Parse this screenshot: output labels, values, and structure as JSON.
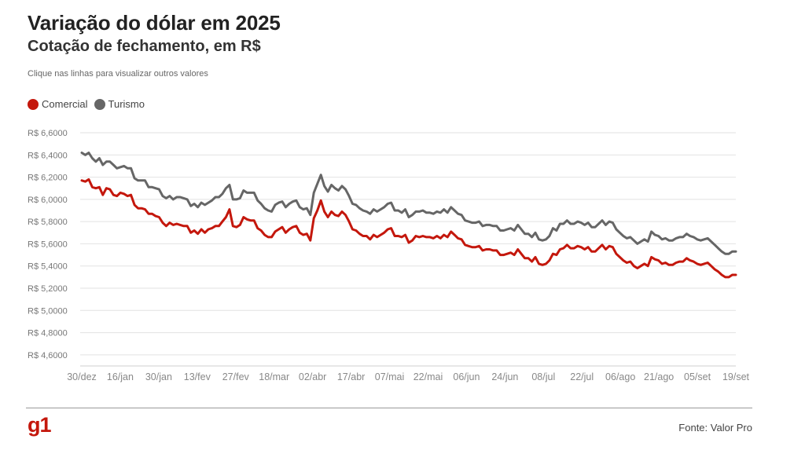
{
  "header": {
    "title": "Variação do dólar em 2025",
    "subtitle": "Cotação de fechamento, em R$",
    "instruction": "Clique nas linhas para visualizar outros valores"
  },
  "footer": {
    "logo": "g1",
    "source": "Fonte: Valor Pro"
  },
  "colors": {
    "comercial": "#c4170c",
    "turismo": "#666666",
    "grid": "#e2e2e2"
  },
  "chart_data": {
    "type": "line",
    "title": "Variação do dólar em 2025",
    "subtitle": "Cotação de fechamento, em R$",
    "ylim": [
      4.5,
      6.6
    ],
    "yticks": [
      6.6,
      6.4,
      6.2,
      6.0,
      5.8,
      5.6,
      5.4,
      5.2,
      5.0,
      4.8,
      4.6
    ],
    "ytick_labels": [
      "R$ 6,6000",
      "R$ 6,4000",
      "R$ 6,2000",
      "R$ 6,0000",
      "R$ 5,8000",
      "R$ 5,6000",
      "R$ 5,4000",
      "R$ 5,2000",
      "R$ 5,0000",
      "R$ 4,8000",
      "R$ 4,6000"
    ],
    "xtick_labels": [
      "30/dez",
      "16/jan",
      "30/jan",
      "13/fev",
      "27/fev",
      "18/mar",
      "02/abr",
      "17/abr",
      "07/mai",
      "22/mai",
      "06/jun",
      "24/jun",
      "08/jul",
      "22/jul",
      "06/ago",
      "21/ago",
      "05/set",
      "19/set"
    ],
    "legend_position": "top-left",
    "grid": true,
    "series": [
      {
        "name": "Comercial",
        "color": "#c4170c",
        "values": [
          6.17,
          6.16,
          6.18,
          6.11,
          6.1,
          6.11,
          6.04,
          6.1,
          6.09,
          6.04,
          6.03,
          6.06,
          6.05,
          6.03,
          6.04,
          5.95,
          5.92,
          5.92,
          5.91,
          5.87,
          5.87,
          5.85,
          5.84,
          5.79,
          5.76,
          5.79,
          5.77,
          5.78,
          5.77,
          5.76,
          5.76,
          5.7,
          5.72,
          5.69,
          5.73,
          5.7,
          5.73,
          5.74,
          5.76,
          5.76,
          5.8,
          5.84,
          5.91,
          5.76,
          5.75,
          5.77,
          5.84,
          5.82,
          5.81,
          5.81,
          5.74,
          5.72,
          5.68,
          5.66,
          5.66,
          5.71,
          5.73,
          5.75,
          5.7,
          5.73,
          5.75,
          5.76,
          5.7,
          5.68,
          5.69,
          5.63,
          5.83,
          5.9,
          5.99,
          5.89,
          5.84,
          5.89,
          5.86,
          5.85,
          5.89,
          5.86,
          5.8,
          5.73,
          5.72,
          5.69,
          5.67,
          5.67,
          5.64,
          5.68,
          5.66,
          5.68,
          5.7,
          5.73,
          5.74,
          5.67,
          5.67,
          5.66,
          5.68,
          5.61,
          5.63,
          5.67,
          5.66,
          5.67,
          5.66,
          5.66,
          5.65,
          5.67,
          5.65,
          5.68,
          5.66,
          5.71,
          5.68,
          5.65,
          5.64,
          5.59,
          5.58,
          5.57,
          5.57,
          5.58,
          5.54,
          5.55,
          5.55,
          5.54,
          5.54,
          5.5,
          5.5,
          5.51,
          5.52,
          5.5,
          5.55,
          5.51,
          5.47,
          5.47,
          5.44,
          5.48,
          5.42,
          5.41,
          5.42,
          5.45,
          5.51,
          5.5,
          5.55,
          5.56,
          5.59,
          5.56,
          5.56,
          5.58,
          5.57,
          5.55,
          5.57,
          5.53,
          5.53,
          5.56,
          5.59,
          5.55,
          5.58,
          5.57,
          5.51,
          5.48,
          5.45,
          5.43,
          5.44,
          5.4,
          5.38,
          5.4,
          5.42,
          5.4,
          5.48,
          5.46,
          5.45,
          5.42,
          5.43,
          5.41,
          5.41,
          5.43,
          5.44,
          5.44,
          5.47,
          5.45,
          5.44,
          5.42,
          5.41,
          5.42,
          5.43,
          5.4,
          5.37,
          5.35,
          5.32,
          5.3,
          5.3,
          5.32,
          5.32
        ]
      },
      {
        "name": "Turismo",
        "color": "#666666",
        "values": [
          6.42,
          6.4,
          6.42,
          6.37,
          6.34,
          6.37,
          6.31,
          6.34,
          6.34,
          6.31,
          6.28,
          6.29,
          6.3,
          6.28,
          6.28,
          6.19,
          6.17,
          6.17,
          6.17,
          6.11,
          6.11,
          6.1,
          6.09,
          6.03,
          6.01,
          6.03,
          6.0,
          6.02,
          6.02,
          6.01,
          6.0,
          5.94,
          5.96,
          5.93,
          5.97,
          5.95,
          5.97,
          5.99,
          6.02,
          6.02,
          6.05,
          6.1,
          6.13,
          6.0,
          6.0,
          6.01,
          6.08,
          6.06,
          6.06,
          6.06,
          5.99,
          5.96,
          5.92,
          5.9,
          5.89,
          5.95,
          5.97,
          5.98,
          5.93,
          5.96,
          5.98,
          5.99,
          5.93,
          5.91,
          5.92,
          5.86,
          6.06,
          6.14,
          6.22,
          6.12,
          6.07,
          6.13,
          6.1,
          6.08,
          6.12,
          6.09,
          6.03,
          5.96,
          5.95,
          5.92,
          5.9,
          5.89,
          5.87,
          5.91,
          5.89,
          5.91,
          5.93,
          5.96,
          5.97,
          5.9,
          5.9,
          5.88,
          5.91,
          5.84,
          5.86,
          5.89,
          5.89,
          5.9,
          5.88,
          5.88,
          5.87,
          5.89,
          5.88,
          5.91,
          5.88,
          5.93,
          5.9,
          5.87,
          5.86,
          5.81,
          5.8,
          5.79,
          5.79,
          5.8,
          5.76,
          5.77,
          5.77,
          5.76,
          5.76,
          5.72,
          5.72,
          5.73,
          5.74,
          5.72,
          5.77,
          5.73,
          5.69,
          5.69,
          5.66,
          5.7,
          5.64,
          5.63,
          5.64,
          5.67,
          5.74,
          5.72,
          5.78,
          5.78,
          5.81,
          5.78,
          5.78,
          5.8,
          5.79,
          5.77,
          5.79,
          5.75,
          5.75,
          5.78,
          5.81,
          5.77,
          5.8,
          5.79,
          5.73,
          5.7,
          5.67,
          5.65,
          5.66,
          5.63,
          5.6,
          5.62,
          5.64,
          5.62,
          5.71,
          5.68,
          5.67,
          5.64,
          5.65,
          5.63,
          5.63,
          5.65,
          5.66,
          5.66,
          5.69,
          5.67,
          5.66,
          5.64,
          5.63,
          5.64,
          5.65,
          5.62,
          5.59,
          5.56,
          5.53,
          5.51,
          5.51,
          5.53,
          5.53
        ]
      }
    ]
  }
}
